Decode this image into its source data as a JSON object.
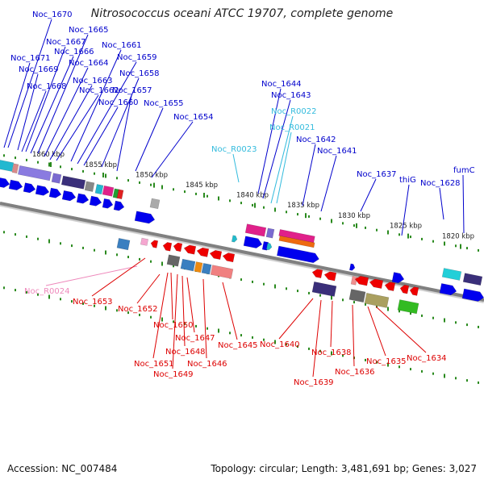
{
  "title": "Nitrosococcus oceani ATCC 19707, complete genome",
  "footer": {
    "accession": "Accession: NC_007484",
    "summary": "Topology: circular; Length: 3,481,691 bp; Genes: 3,027"
  },
  "colors": {
    "backbone": "#808080",
    "tick": "#2a8a1e",
    "forward_label": "#0000cc",
    "reverse_label": "#dd0000",
    "rna_forward_label": "#33bbdd",
    "rna_reverse_label": "#ee88bb"
  },
  "ruler": [
    "1860 kbp",
    "1855 kbp",
    "1850 kbp",
    "1845 kbp",
    "1840 kbp",
    "1835 kbp",
    "1830 kbp",
    "1825 kbp",
    "1820 kbp"
  ],
  "forward_labels": [
    "Noc_1670",
    "Noc_1665",
    "Noc_1667",
    "Noc_1666",
    "Noc_1671",
    "Noc_1664",
    "Noc_1669",
    "Noc_1668",
    "Noc_1663",
    "Noc_1662",
    "Noc_1661",
    "Noc_1659",
    "Noc_1658",
    "Noc_1657",
    "Noc_1660",
    "Noc_1655",
    "Noc_1654",
    "Noc_1644",
    "Noc_1643",
    "Noc_R0022",
    "Noc_R0021",
    "Noc_R0023",
    "Noc_1642",
    "Noc_1641",
    "Noc_1637",
    "thiG",
    "Noc_1628",
    "fumC"
  ],
  "reverse_labels": [
    "Noc_R0024",
    "Noc_1653",
    "Noc_1652",
    "Noc_1650",
    "Noc_1647",
    "Noc_1648",
    "Noc_1651",
    "Noc_1646",
    "Noc_1649",
    "Noc_1645",
    "Noc_1640",
    "Noc_1638",
    "Noc_1639",
    "Noc_1636",
    "Noc_1635",
    "Noc_1634"
  ]
}
